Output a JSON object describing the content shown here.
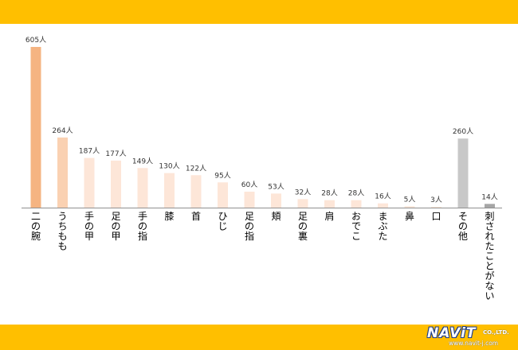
{
  "chart_data": {
    "type": "bar",
    "title": "",
    "xlabel": "",
    "ylabel": "",
    "categories": [
      "二の腕",
      "うちもも",
      "手の甲",
      "足の甲",
      "手の指",
      "膝",
      "首",
      "ひじ",
      "足の指",
      "頬",
      "足の裏",
      "肩",
      "おでこ",
      "まぶた",
      "鼻",
      "口",
      "その他",
      "刺されたことがない"
    ],
    "values": [
      605,
      264,
      187,
      177,
      149,
      130,
      122,
      95,
      60,
      53,
      32,
      28,
      28,
      16,
      5,
      3,
      260,
      14
    ],
    "value_labels": [
      "605人",
      "264人",
      "187人",
      "177人",
      "149人",
      "130人",
      "122人",
      "95人",
      "60人",
      "53人",
      "32人",
      "28人",
      "28人",
      "16人",
      "5人",
      "3人",
      "260人",
      "14人"
    ],
    "unit": "人",
    "ylim": [
      0,
      605
    ],
    "grid": false,
    "legend": "none",
    "colors": {
      "top": "#f5b482",
      "second": "#fad1b2",
      "rest": "#fde6d8",
      "other": "#c8c8c8",
      "never": "#a6a6a6",
      "axis": "#909090",
      "text": "#333333"
    }
  },
  "brand": {
    "logo_text": "NAViT",
    "logo_suffix": "CO.,LTD.",
    "url": "www.navit-j.com",
    "band_color": "#ffbf00"
  }
}
